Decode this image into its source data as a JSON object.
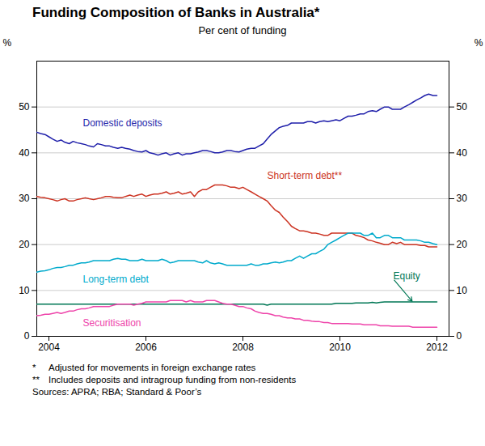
{
  "chart_data": {
    "type": "line",
    "title": "Funding Composition of Banks in Australia*",
    "subtitle": "Per cent of funding",
    "ylabel": "%",
    "y2label": "%",
    "xlim": [
      2003.75,
      2012.25
    ],
    "ylim": [
      0,
      60
    ],
    "xticks": [
      2004,
      2006,
      2008,
      2010,
      2012
    ],
    "yticks": [
      0,
      10,
      20,
      30,
      40,
      50
    ],
    "y2lim": [
      0,
      60
    ],
    "y2ticks": [
      0,
      10,
      20,
      30,
      40,
      50
    ],
    "grid": true,
    "x": [
      2003.75,
      2003.83,
      2003.92,
      2004.0,
      2004.08,
      2004.17,
      2004.25,
      2004.33,
      2004.42,
      2004.5,
      2004.58,
      2004.67,
      2004.75,
      2004.83,
      2004.92,
      2005.0,
      2005.08,
      2005.17,
      2005.25,
      2005.33,
      2005.42,
      2005.5,
      2005.58,
      2005.67,
      2005.75,
      2005.83,
      2005.92,
      2006.0,
      2006.08,
      2006.17,
      2006.25,
      2006.33,
      2006.42,
      2006.5,
      2006.58,
      2006.67,
      2006.75,
      2006.83,
      2006.92,
      2007.0,
      2007.08,
      2007.17,
      2007.25,
      2007.33,
      2007.42,
      2007.5,
      2007.58,
      2007.67,
      2007.75,
      2007.83,
      2007.92,
      2008.0,
      2008.08,
      2008.17,
      2008.25,
      2008.33,
      2008.42,
      2008.5,
      2008.58,
      2008.67,
      2008.75,
      2008.83,
      2008.92,
      2009.0,
      2009.08,
      2009.17,
      2009.25,
      2009.33,
      2009.42,
      2009.5,
      2009.58,
      2009.67,
      2009.75,
      2009.83,
      2009.92,
      2010.0,
      2010.08,
      2010.17,
      2010.25,
      2010.33,
      2010.42,
      2010.5,
      2010.58,
      2010.67,
      2010.75,
      2010.83,
      2010.92,
      2011.0,
      2011.08,
      2011.17,
      2011.25,
      2011.33,
      2011.42,
      2011.5,
      2011.58,
      2011.67,
      2011.75,
      2011.83,
      2011.92,
      2012.0
    ],
    "series": [
      {
        "name": "Domestic deposits",
        "color": "#1f1faa",
        "annotation": {
          "x": 2004.7,
          "y": 46.5
        },
        "values": [
          44.5,
          44.2,
          44.0,
          43.5,
          43.0,
          42.5,
          42.8,
          42.3,
          42.0,
          42.5,
          42.2,
          42.0,
          41.8,
          41.5,
          41.3,
          42.0,
          41.8,
          41.5,
          41.5,
          41.2,
          41.0,
          41.2,
          41.0,
          40.8,
          40.5,
          40.3,
          40.2,
          40.5,
          40.0,
          39.8,
          39.5,
          39.8,
          40.0,
          39.5,
          39.8,
          40.0,
          39.5,
          39.8,
          39.8,
          40.0,
          40.2,
          40.5,
          40.5,
          40.3,
          40.0,
          40.0,
          40.2,
          40.5,
          40.5,
          40.3,
          40.2,
          40.5,
          40.8,
          41.0,
          41.0,
          41.5,
          42.0,
          43.0,
          44.0,
          44.8,
          45.5,
          45.8,
          46.0,
          46.5,
          46.5,
          46.5,
          46.5,
          46.8,
          46.8,
          46.5,
          46.8,
          47.0,
          46.8,
          47.0,
          47.2,
          47.0,
          47.5,
          48.0,
          48.0,
          48.2,
          48.5,
          48.5,
          49.0,
          49.2,
          49.0,
          49.5,
          50.0,
          50.0,
          49.5,
          49.5,
          49.5,
          50.0,
          50.5,
          51.0,
          51.5,
          52.0,
          52.5,
          52.8,
          52.5,
          52.5
        ]
      },
      {
        "name": "Short-term debt**",
        "color": "#cc3322",
        "annotation": {
          "x": 2008.5,
          "y": 35.0
        },
        "values": [
          30.5,
          30.3,
          30.2,
          30.0,
          29.8,
          29.5,
          29.8,
          30.0,
          29.5,
          29.5,
          29.8,
          30.0,
          30.2,
          30.0,
          29.8,
          30.0,
          30.2,
          30.5,
          30.5,
          30.3,
          30.2,
          30.2,
          30.5,
          30.8,
          30.5,
          30.8,
          31.0,
          30.5,
          30.8,
          31.0,
          31.0,
          31.2,
          31.5,
          31.0,
          31.2,
          31.5,
          31.0,
          31.2,
          31.5,
          30.5,
          31.5,
          32.0,
          32.0,
          32.5,
          33.0,
          33.0,
          33.0,
          32.8,
          32.5,
          32.5,
          32.2,
          32.5,
          32.0,
          31.5,
          31.0,
          30.5,
          30.0,
          29.5,
          28.5,
          27.5,
          27.0,
          26.0,
          25.0,
          24.0,
          23.5,
          23.0,
          23.0,
          22.8,
          22.5,
          22.5,
          22.3,
          22.0,
          22.0,
          22.5,
          22.5,
          22.5,
          22.5,
          22.5,
          22.5,
          22.0,
          21.8,
          21.5,
          21.0,
          20.8,
          20.5,
          20.3,
          20.0,
          20.0,
          20.5,
          20.2,
          20.5,
          20.0,
          20.0,
          20.0,
          20.0,
          19.8,
          19.8,
          19.5,
          19.5,
          19.5
        ]
      },
      {
        "name": "Long-term debt",
        "color": "#00aacc",
        "annotation": {
          "x": 2004.7,
          "y": 12.5
        },
        "values": [
          14.0,
          14.2,
          14.3,
          14.5,
          14.8,
          15.0,
          15.0,
          15.2,
          15.5,
          15.5,
          15.8,
          16.0,
          16.0,
          16.2,
          16.5,
          16.5,
          16.5,
          16.5,
          16.5,
          16.8,
          17.0,
          16.8,
          16.8,
          16.5,
          16.5,
          16.5,
          16.8,
          16.5,
          16.5,
          16.5,
          16.5,
          16.8,
          16.5,
          16.0,
          16.2,
          16.5,
          16.5,
          16.5,
          16.5,
          16.5,
          16.2,
          16.0,
          16.5,
          16.0,
          15.8,
          16.0,
          15.8,
          15.5,
          15.5,
          15.5,
          15.5,
          15.5,
          15.5,
          15.8,
          15.5,
          15.5,
          15.8,
          15.8,
          16.0,
          16.2,
          16.0,
          16.2,
          16.5,
          16.5,
          17.0,
          17.5,
          17.0,
          17.5,
          18.0,
          18.0,
          18.5,
          19.0,
          20.0,
          20.5,
          21.0,
          21.5,
          22.0,
          22.5,
          22.5,
          22.5,
          22.5,
          22.0,
          22.0,
          22.5,
          21.5,
          21.5,
          22.0,
          22.0,
          21.5,
          21.5,
          21.5,
          21.0,
          21.0,
          21.0,
          21.0,
          20.8,
          20.5,
          20.5,
          20.2,
          20.0
        ]
      },
      {
        "name": "Equity",
        "color": "#007755",
        "annotation": {
          "x": 2011.1,
          "y": 12.5,
          "arrow_x": 2011.5,
          "arrow_y": 7.5
        },
        "values": [
          7.0,
          7.0,
          7.0,
          7.0,
          7.0,
          7.0,
          7.0,
          7.0,
          7.0,
          7.0,
          7.0,
          7.0,
          7.0,
          7.0,
          7.0,
          7.0,
          7.0,
          7.0,
          7.0,
          7.0,
          7.0,
          7.0,
          7.0,
          7.0,
          7.0,
          7.0,
          7.0,
          7.0,
          7.0,
          7.0,
          7.0,
          7.0,
          7.0,
          7.0,
          7.0,
          7.0,
          7.0,
          7.0,
          7.0,
          7.0,
          7.0,
          7.0,
          7.0,
          7.0,
          7.0,
          7.0,
          7.0,
          7.0,
          7.0,
          7.0,
          7.0,
          7.0,
          7.0,
          7.0,
          7.0,
          7.0,
          7.0,
          6.8,
          7.0,
          7.0,
          7.0,
          7.0,
          7.0,
          7.0,
          7.0,
          7.0,
          7.0,
          7.0,
          7.0,
          7.0,
          7.0,
          7.0,
          7.0,
          7.0,
          7.2,
          7.2,
          7.2,
          7.2,
          7.2,
          7.3,
          7.3,
          7.3,
          7.3,
          7.4,
          7.3,
          7.4,
          7.5,
          7.5,
          7.5,
          7.5,
          7.5,
          7.5,
          7.5,
          7.5,
          7.5,
          7.5,
          7.5,
          7.5,
          7.5,
          7.5
        ]
      },
      {
        "name": "Securitisation",
        "color": "#ee44aa",
        "annotation": {
          "x": 2004.7,
          "y": 2.8
        },
        "values": [
          4.5,
          4.6,
          4.8,
          4.8,
          5.0,
          5.2,
          5.0,
          5.2,
          5.5,
          5.5,
          5.8,
          6.0,
          6.0,
          6.2,
          6.5,
          6.5,
          6.5,
          6.5,
          6.5,
          6.8,
          7.0,
          7.0,
          7.0,
          7.0,
          6.8,
          7.0,
          7.2,
          7.5,
          7.5,
          7.5,
          7.5,
          7.5,
          7.5,
          7.8,
          7.8,
          7.8,
          7.8,
          7.5,
          7.8,
          7.5,
          7.5,
          7.5,
          7.8,
          7.8,
          7.8,
          7.5,
          7.2,
          7.0,
          7.0,
          6.8,
          6.5,
          6.5,
          6.2,
          6.0,
          5.5,
          5.2,
          5.0,
          5.0,
          4.8,
          4.5,
          4.5,
          4.2,
          4.0,
          4.0,
          3.8,
          3.8,
          3.5,
          3.5,
          3.3,
          3.2,
          3.2,
          3.0,
          3.0,
          2.8,
          2.8,
          2.8,
          2.8,
          2.8,
          2.7,
          2.7,
          2.7,
          2.5,
          2.5,
          2.5,
          2.5,
          2.3,
          2.3,
          2.3,
          2.2,
          2.2,
          2.2,
          2.2,
          2.2,
          2.0,
          2.0,
          2.0,
          2.0,
          2.0,
          2.0,
          2.0
        ]
      }
    ],
    "footnotes": [
      {
        "marker": "*",
        "text": "Adjusted for movements in foreign exchange rates"
      },
      {
        "marker": "**",
        "text": "Includes deposits and intragroup funding from non-residents"
      }
    ],
    "source": "Sources: APRA; RBA; Standard & Poor’s"
  }
}
